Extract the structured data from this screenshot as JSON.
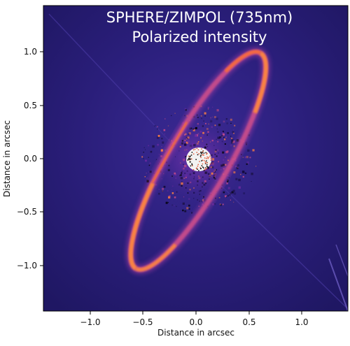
{
  "figure": {
    "title_line1": "SPHERE/ZIMPOL (735nm)",
    "title_line2": "Polarized intensity",
    "xlabel": "Distance in arcsec",
    "ylabel": "Distance in arcsec",
    "x_ticks": [
      "−1.0",
      "−0.5",
      "0.0",
      "0.5",
      "1.0"
    ],
    "y_ticks": [
      "1.0",
      "0.5",
      "0.0",
      "−0.5",
      "−1.0"
    ],
    "colors": {
      "background": "#2a1e7a",
      "ring_inner": "#ff7a3a",
      "ring_outer": "#b43a9a",
      "center": "#ffffff"
    }
  }
}
